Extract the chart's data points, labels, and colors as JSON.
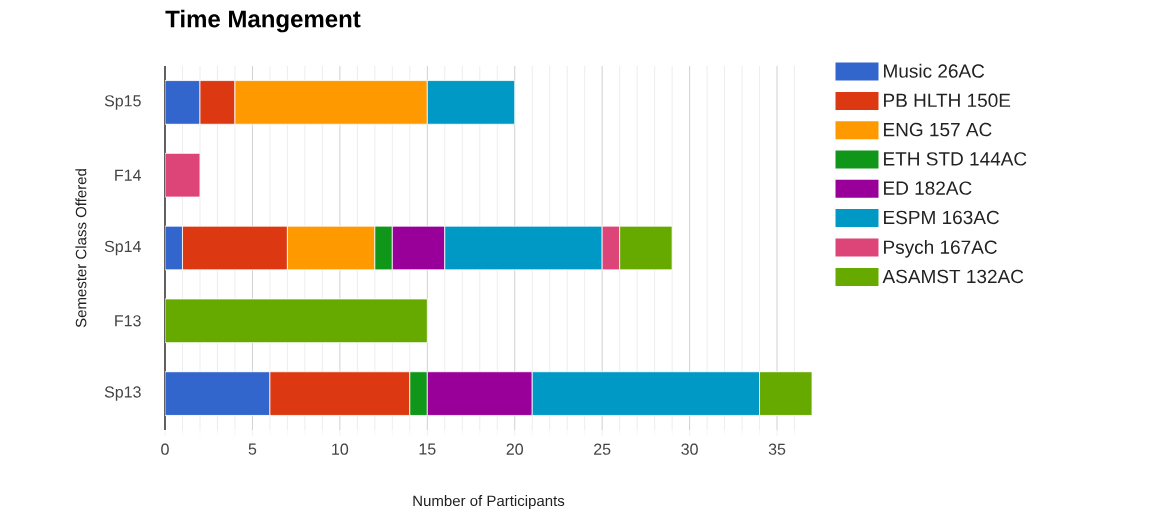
{
  "chart_data": {
    "type": "bar",
    "orientation": "horizontal",
    "stacked": true,
    "title": "Time Mangement",
    "xlabel": "Number of Participants",
    "ylabel": "Semester Class Offered",
    "categories": [
      "Sp15",
      "F14",
      "Sp14",
      "F13",
      "Sp13"
    ],
    "series": [
      {
        "name": "Music 26AC",
        "color": "#3366cc",
        "values": [
          2,
          null,
          1,
          null,
          6
        ]
      },
      {
        "name": "PB HLTH 150E",
        "color": "#dc3912",
        "values": [
          2,
          null,
          6,
          null,
          8
        ]
      },
      {
        "name": "ENG 157 AC",
        "color": "#ff9900",
        "values": [
          11,
          null,
          5,
          null,
          null
        ]
      },
      {
        "name": "ETH STD 144AC",
        "color": "#109618",
        "values": [
          null,
          null,
          1,
          null,
          1
        ]
      },
      {
        "name": "ED 182AC",
        "color": "#990099",
        "values": [
          null,
          null,
          3,
          null,
          6
        ]
      },
      {
        "name": "ESPM 163AC",
        "color": "#0099c6",
        "values": [
          5,
          null,
          9,
          null,
          13
        ]
      },
      {
        "name": "Psych 167AC",
        "color": "#dd4477",
        "values": [
          null,
          2,
          1,
          null,
          null
        ]
      },
      {
        "name": "ASAMST 132AC",
        "color": "#66aa00",
        "values": [
          null,
          null,
          3,
          15,
          3
        ]
      }
    ],
    "xlim": [
      0,
      37
    ],
    "xticks": [
      0,
      {
        "value": 1,
        "label": null
      },
      {
        "value": 2,
        "label": null
      },
      {
        "value": 3,
        "label": null
      },
      {
        "value": 4,
        "label": null
      },
      5,
      {
        "value": 6,
        "label": null
      },
      {
        "value": 7,
        "label": null
      },
      {
        "value": 8,
        "label": null
      },
      {
        "value": 9,
        "label": null
      },
      10,
      {
        "value": 11,
        "label": null
      },
      {
        "value": 12,
        "label": null
      },
      {
        "value": 13,
        "label": null
      },
      {
        "value": 14,
        "label": null
      },
      15,
      {
        "value": 16,
        "label": null
      },
      {
        "value": 17,
        "label": null
      },
      {
        "value": 18,
        "label": null
      },
      {
        "value": 19,
        "label": null
      },
      20,
      {
        "value": 21,
        "label": null
      },
      {
        "value": 22,
        "label": null
      },
      {
        "value": 23,
        "label": null
      },
      {
        "value": 24,
        "label": null
      },
      25,
      {
        "value": 26,
        "label": null
      },
      {
        "value": 27,
        "label": null
      },
      {
        "value": 28,
        "label": null
      },
      {
        "value": 29,
        "label": null
      },
      30,
      {
        "value": 31,
        "label": null
      },
      {
        "value": 32,
        "label": null
      },
      {
        "value": 33,
        "label": null
      },
      {
        "value": 34,
        "label": null
      },
      35,
      {
        "value": 36,
        "label": null
      }
    ],
    "grid": "x",
    "legend": "right"
  }
}
